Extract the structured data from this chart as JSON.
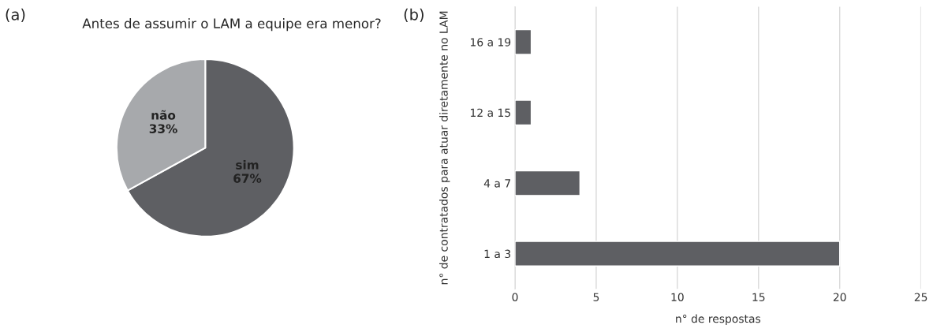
{
  "chart_data": [
    {
      "type": "pie",
      "title": "Antes de assumir o LAM a equipe era menor?",
      "annotations": [
        "(a)"
      ],
      "categories": [
        "sim",
        "não"
      ],
      "values": [
        67,
        33
      ],
      "colors": [
        "#5e5f63",
        "#a7a9ac"
      ],
      "value_labels": [
        "67%",
        "33%"
      ],
      "legend": false
    },
    {
      "type": "bar",
      "orientation": "horizontal",
      "annotations": [
        "(b)"
      ],
      "categories": [
        "16 a 19",
        "12 a 15",
        "4 a 7",
        "1 a 3"
      ],
      "values": [
        1,
        1,
        4,
        20
      ],
      "color": "#5e5f63",
      "xlabel": "n° de respostas",
      "ylabel": "n° de contratados para atuar diretamente no LAM",
      "xlim": [
        0,
        25
      ],
      "xticks": [
        0,
        5,
        10,
        15,
        20,
        25
      ],
      "grid": "x",
      "legend": false
    }
  ]
}
